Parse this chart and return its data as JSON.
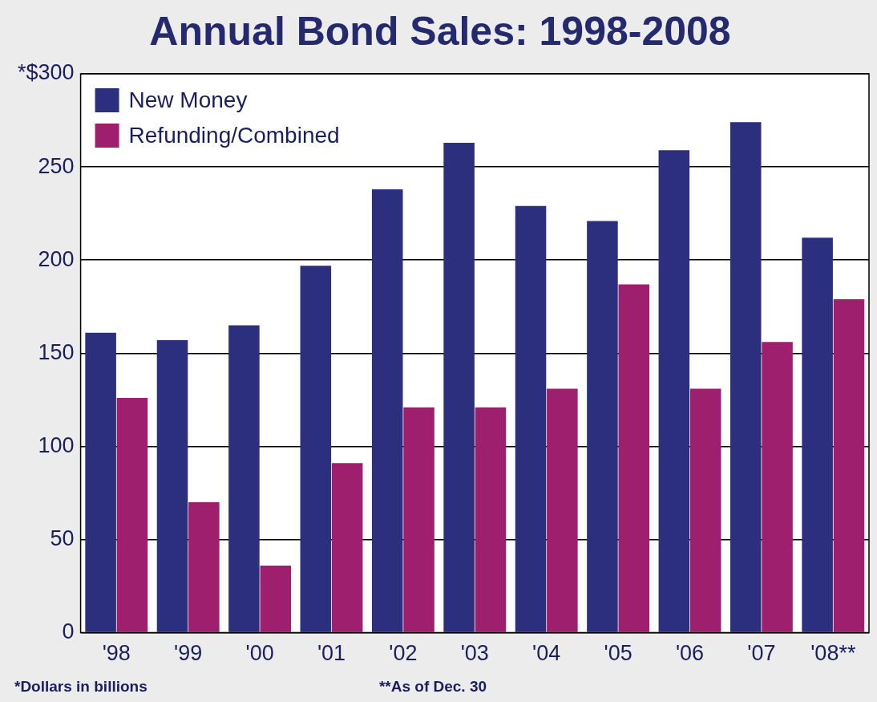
{
  "chart_data": {
    "type": "bar",
    "title": "Annual Bond Sales: 1998-2008",
    "categories": [
      "'98",
      "'99",
      "'00",
      "'01",
      "'02",
      "'03",
      "'04",
      "'05",
      "'06",
      "'07",
      "'08**"
    ],
    "series": [
      {
        "name": "New Money",
        "color": "#2b2f7e",
        "values": [
          161,
          157,
          165,
          197,
          238,
          263,
          229,
          221,
          259,
          274,
          212
        ]
      },
      {
        "name": "Refunding/Combined",
        "color": "#9e1f6e",
        "values": [
          126,
          70,
          36,
          91,
          121,
          121,
          131,
          187,
          131,
          156,
          179
        ]
      }
    ],
    "ylim": [
      0,
      300
    ],
    "yticks": [
      0,
      50,
      100,
      150,
      200,
      250,
      {
        "value": 300,
        "label": "*$300"
      }
    ],
    "grid": "y",
    "legend": "top left",
    "annotations": [
      "*Dollars in billions",
      "**As of Dec. 30"
    ]
  }
}
